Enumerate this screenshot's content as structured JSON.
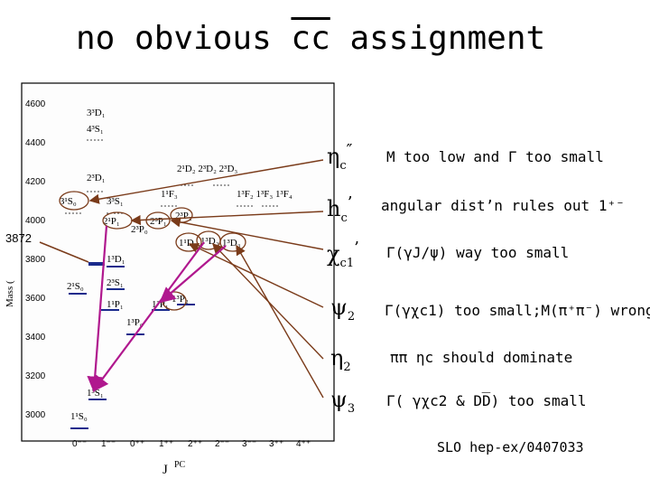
{
  "title": {
    "prefix": "no obvious ",
    "cc": "cc",
    "suffix": " assignment"
  },
  "mass_label": "3872",
  "diagram": {
    "y_ticks": [
      "4600",
      "4400",
      "4200",
      "4000",
      "3800",
      "3600",
      "3400",
      "3200",
      "3000"
    ],
    "y_axis_label": "Mass (",
    "x_ticks": [
      "0⁻⁻",
      "1⁻⁻",
      "0⁺⁺",
      "1⁺⁺",
      "2⁺⁺",
      "2⁻⁻",
      "3⁻⁻",
      "3⁺⁺",
      "4⁺⁺"
    ],
    "x_axis_label": "J",
    "x_axis_sup": "PC",
    "levels": [
      {
        "label": "3³D₁"
      },
      {
        "label": "4³S₁"
      },
      {
        "label": "2³D₁"
      },
      {
        "label": "3¹S₀"
      },
      {
        "label": "3³S₁"
      },
      {
        "label": "2¹D₂ 2³D₂ 2³D₃"
      },
      {
        "label": "1¹F₃"
      },
      {
        "label": "1³F₂ 1³F₃ 1³F₄"
      },
      {
        "label": "2¹P₁"
      },
      {
        "label": "2³P₀"
      },
      {
        "label": "2³P₁"
      },
      {
        "label": "2³P₂"
      },
      {
        "label": "1¹D₂"
      },
      {
        "label": "1³D₂"
      },
      {
        "label": "1³D₃"
      },
      {
        "label": "1³D₁"
      },
      {
        "label": "2¹S₀"
      },
      {
        "label": "2³S₁"
      },
      {
        "label": "1¹P₁"
      },
      {
        "label": "1³P₀"
      },
      {
        "label": "1³P₁"
      },
      {
        "label": "1³P₂"
      },
      {
        "label": "1³S₁"
      },
      {
        "label": "1¹S₀"
      }
    ]
  },
  "rows": [
    {
      "state_base": "η",
      "state_sub": "c",
      "state_sup": "″",
      "note": "M too low and Γ too small"
    },
    {
      "state_base": "h",
      "state_sub": "c",
      "state_sup": "’",
      "note": "angular dist’n rules out 1⁺⁻"
    },
    {
      "state_base": "χ",
      "state_sub": "c1",
      "state_sup": "’",
      "note": "Γ(γJ/ψ) way too small"
    },
    {
      "state_base": "ψ",
      "state_sub": "2",
      "state_sup": "",
      "note": "Γ(γχc1) too small;M(π⁺π⁻) wrong"
    },
    {
      "state_base": "η",
      "state_sub": "2",
      "state_sup": "",
      "note": "ππ ηc should dominate"
    },
    {
      "state_base": "ψ",
      "state_sub": "3",
      "state_sup": "",
      "note": "Γ( γχc2 & DD̅) too small"
    }
  ],
  "reference": "SLO hep-ex/0407033",
  "colors": {
    "arrow_brown": "#7a3b1a",
    "arrow_magenta": "#b0188e",
    "level_blue": "#1a2a8c"
  }
}
